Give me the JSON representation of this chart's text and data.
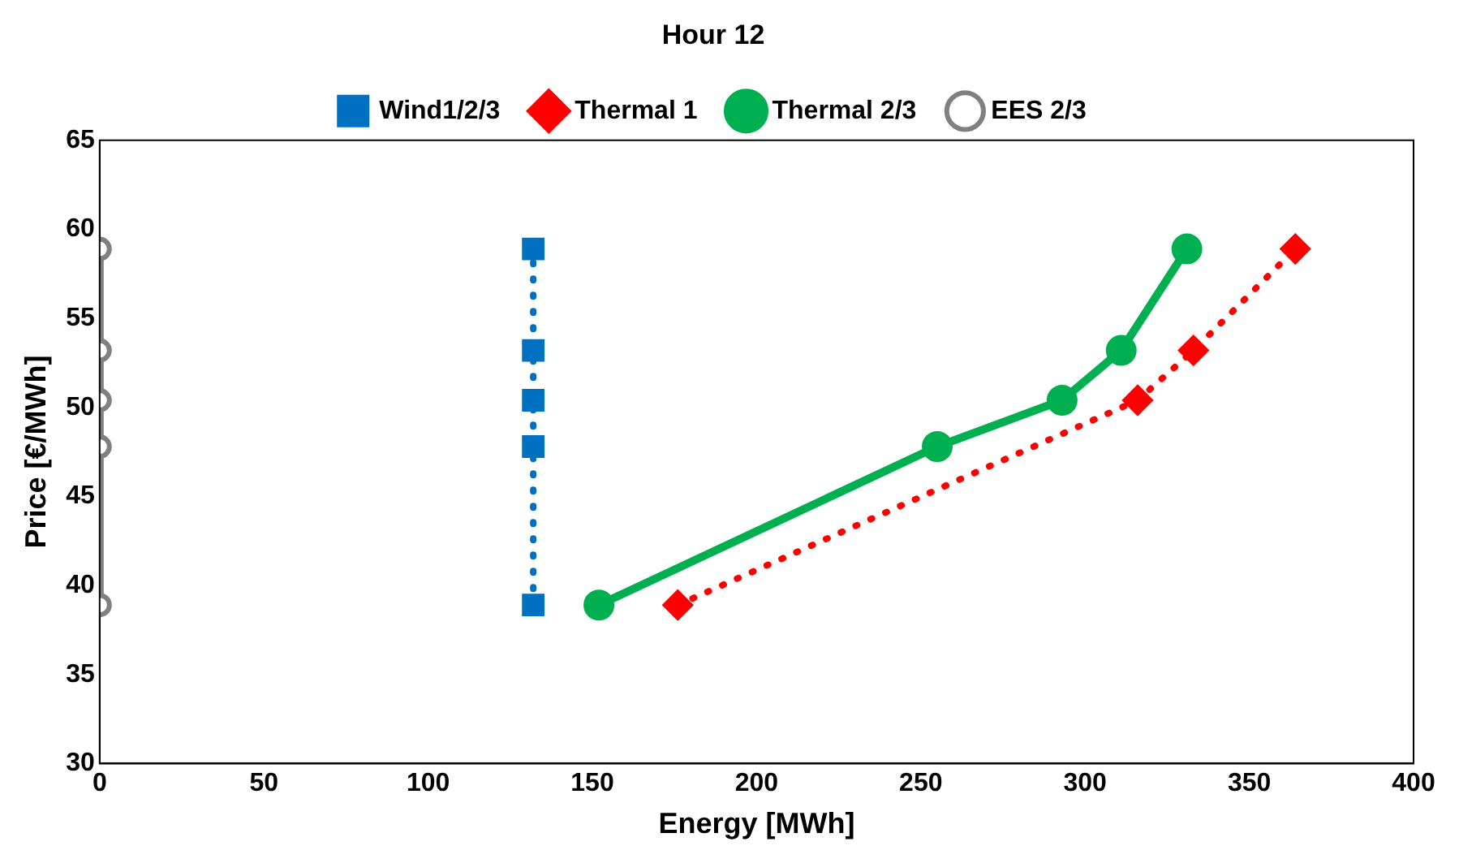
{
  "chart_data": {
    "type": "line",
    "title": "Hour 12",
    "xlabel": "Energy [MWh]",
    "ylabel": "Price [€/MWh]",
    "xlim": [
      0,
      400
    ],
    "xticks": [
      0,
      50,
      100,
      150,
      200,
      250,
      300,
      350,
      400
    ],
    "ylim": [
      30,
      65
    ],
    "yticks": [
      30,
      35,
      40,
      45,
      50,
      55,
      60,
      65
    ],
    "grid": false,
    "legend": "top",
    "series": [
      {
        "name": "Wind1/2/3",
        "color": "#0070c0",
        "marker": "square",
        "line_style": "dotted",
        "x": [
          132,
          132,
          132,
          132,
          132
        ],
        "values": [
          38.9,
          47.8,
          50.4,
          53.2,
          58.9
        ]
      },
      {
        "name": "Thermal 1",
        "color": "#ff0000",
        "marker": "diamond",
        "line_style": "dotted",
        "x": [
          176,
          316,
          333,
          364
        ],
        "values": [
          38.9,
          50.4,
          53.2,
          58.9
        ]
      },
      {
        "name": "Thermal 2/3",
        "color": "#00b050",
        "marker": "circle",
        "line_style": "solid",
        "x": [
          152,
          255,
          293,
          311,
          331
        ],
        "values": [
          38.9,
          47.8,
          50.4,
          53.2,
          58.9
        ]
      },
      {
        "name": "EES 2/3",
        "color": "#808080",
        "marker": "circle",
        "line_style": "solid",
        "x": [
          0,
          0,
          0,
          0,
          0
        ],
        "values": [
          38.9,
          47.8,
          50.4,
          53.2,
          58.9
        ]
      }
    ]
  }
}
